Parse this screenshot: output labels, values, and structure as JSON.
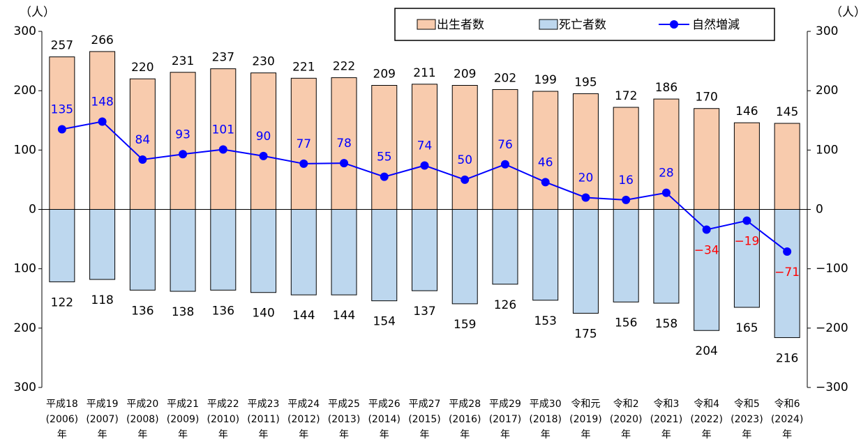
{
  "chart_data": {
    "type": "bar",
    "y_unit": "（人）",
    "y2_unit": "（人）",
    "categories": [
      "平成18\n(2006)\n年",
      "平成19\n(2007)\n年",
      "平成20\n(2008)\n年",
      "平成21\n(2009)\n年",
      "平成22\n(2010)\n年",
      "平成23\n(2011)\n年",
      "平成24\n(2012)\n年",
      "平成25\n(2013)\n年",
      "平成26\n(2014)\n年",
      "平成27\n(2015)\n年",
      "平成28\n(2016)\n年",
      "平成29\n(2017)\n年",
      "平成30\n(2018)\n年",
      "令和元\n(2019)\n年",
      "令和2\n(2020)\n年",
      "令和3\n(2021)\n年",
      "令和4\n(2022)\n年",
      "令和5\n(2023)\n年",
      "令和6\n(2024)\n年"
    ],
    "series": [
      {
        "name": "出生者数",
        "color": "#f8cbad",
        "values": [
          257,
          266,
          220,
          231,
          237,
          230,
          221,
          222,
          209,
          211,
          209,
          202,
          199,
          195,
          172,
          186,
          170,
          146,
          145
        ]
      },
      {
        "name": "死亡者数",
        "color": "#bdd7ee",
        "values": [
          -122,
          -118,
          -136,
          -138,
          -136,
          -140,
          -144,
          -144,
          -154,
          -137,
          -159,
          -126,
          -153,
          -175,
          -156,
          -158,
          -204,
          -165,
          -216
        ],
        "value_labels": [
          "122",
          "118",
          "136",
          "138",
          "136",
          "140",
          "144",
          "144",
          "154",
          "137",
          "159",
          "126",
          "153",
          "175",
          "156",
          "158",
          "204",
          "165",
          "216"
        ]
      },
      {
        "name": "自然増減",
        "type": "line",
        "axis": "y2",
        "color": "#0000ff",
        "negative_label_color": "#ff0000",
        "values": [
          135,
          148,
          84,
          93,
          101,
          90,
          77,
          78,
          55,
          74,
          50,
          76,
          46,
          20,
          16,
          28,
          -34,
          -19,
          -71
        ],
        "value_labels": [
          "135",
          "148",
          "84",
          "93",
          "101",
          "90",
          "77",
          "78",
          "55",
          "74",
          "50",
          "76",
          "46",
          "20",
          "16",
          "28",
          "−34",
          "−19",
          "−71"
        ]
      }
    ],
    "ylim": [
      -300,
      300
    ],
    "yticks": [
      300,
      200,
      100,
      0,
      {
        "value": -100,
        "label": "100"
      },
      {
        "value": -200,
        "label": "200"
      },
      {
        "value": -300,
        "label": "300"
      }
    ],
    "y2lim": [
      -300,
      300
    ],
    "y2ticks": [
      300,
      200,
      100,
      0,
      {
        "value": -100,
        "label": "−100"
      },
      {
        "value": -200,
        "label": "−200"
      },
      {
        "value": -300,
        "label": "−300"
      }
    ],
    "legend": "top-right"
  }
}
